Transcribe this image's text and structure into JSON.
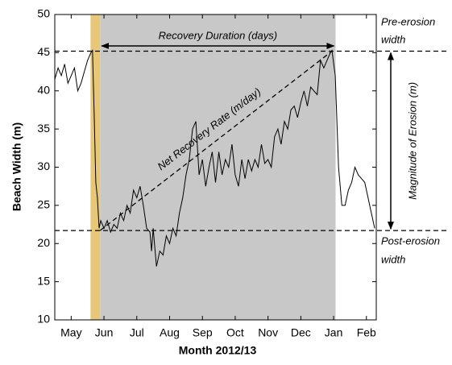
{
  "chart_data": {
    "type": "line",
    "x_label": "Month 2012/13",
    "y_label": "Beach Width (m)",
    "xlim": [
      -0.5,
      9.3
    ],
    "xticks": [
      {
        "value": 0,
        "label": "May"
      },
      {
        "value": 1,
        "label": "Jun"
      },
      {
        "value": 2,
        "label": "Jul"
      },
      {
        "value": 3,
        "label": "Aug"
      },
      {
        "value": 4,
        "label": "Sep"
      },
      {
        "value": 5,
        "label": "Oct"
      },
      {
        "value": 6,
        "label": "Nov"
      },
      {
        "value": 7,
        "label": "Dec"
      },
      {
        "value": 8,
        "label": "Jan"
      },
      {
        "value": 9,
        "label": "Feb"
      }
    ],
    "ylim": [
      10,
      50
    ],
    "yticks": [
      10,
      15,
      20,
      25,
      30,
      35,
      40,
      45,
      50
    ],
    "shaded_regions": [
      {
        "start": 0.59,
        "end": 0.88,
        "color": "#e8c878"
      },
      {
        "start": 0.88,
        "end": 8.06,
        "color": "#c8c8c8"
      }
    ],
    "reference_lines": [
      45.2,
      21.7
    ],
    "trend_line": {
      "x": [
        0.88,
        7.95
      ],
      "y": [
        21.7,
        45.2
      ]
    },
    "annotations": {
      "recovery_duration": "Recovery Duration (days)",
      "recovery_rate": "Net Recovery Rate (m/day)",
      "magnitude": "Magnitude of Erosion (m)",
      "pre_erosion": [
        "Pre-erosion",
        "width"
      ],
      "post_erosion": [
        "Post-erosion",
        "width"
      ]
    },
    "series": [
      {
        "color": "#000000",
        "x": [
          -0.5,
          -0.4,
          -0.3,
          -0.2,
          -0.1,
          0,
          0.1,
          0.2,
          0.3,
          0.4,
          0.5,
          0.6,
          0.65,
          0.7,
          0.75,
          0.8,
          0.85,
          0.9,
          1.0,
          1.1,
          1.2,
          1.3,
          1.4,
          1.5,
          1.6,
          1.7,
          1.8,
          1.9,
          2.0,
          2.1,
          2.2,
          2.3,
          2.4,
          2.45,
          2.5,
          2.6,
          2.7,
          2.8,
          2.9,
          3.0,
          3.1,
          3.2,
          3.3,
          3.4,
          3.5,
          3.6,
          3.7,
          3.8,
          3.9,
          4.0,
          4.1,
          4.2,
          4.3,
          4.4,
          4.5,
          4.6,
          4.7,
          4.8,
          4.9,
          5.0,
          5.1,
          5.2,
          5.3,
          5.4,
          5.5,
          5.6,
          5.7,
          5.8,
          5.9,
          6.0,
          6.1,
          6.2,
          6.3,
          6.4,
          6.5,
          6.6,
          6.7,
          6.8,
          6.9,
          7.0,
          7.1,
          7.2,
          7.3,
          7.4,
          7.5,
          7.6,
          7.7,
          7.8,
          7.9,
          7.95,
          8.05,
          8.15,
          8.25,
          8.35,
          8.45,
          8.55,
          8.65,
          8.75,
          8.85,
          8.95,
          9.05,
          9.15,
          9.25
        ],
        "values": [
          41.5,
          43,
          42,
          43.5,
          41,
          42,
          43,
          40,
          41,
          42.5,
          44,
          45,
          45.3,
          37,
          28,
          26,
          22,
          23,
          22,
          23,
          21.5,
          22.5,
          22,
          24,
          23,
          25,
          24,
          27,
          26,
          27.5,
          25,
          22,
          21.5,
          19,
          22,
          17,
          19,
          18.5,
          21,
          20,
          22,
          21,
          24,
          26,
          29,
          31,
          35,
          36,
          29,
          31,
          27.5,
          30,
          32,
          28,
          32,
          29,
          31,
          30,
          33,
          29,
          27.5,
          31,
          28.5,
          31,
          29.5,
          31,
          30,
          33,
          30.5,
          31,
          30,
          34,
          35,
          33,
          36,
          35,
          37.5,
          38,
          36.5,
          38.5,
          40,
          38,
          40.5,
          40,
          39.5,
          44,
          43,
          44,
          45,
          45.3,
          42,
          30,
          25,
          25,
          27,
          28,
          30,
          29,
          28.5,
          28,
          26,
          24,
          22
        ]
      }
    ]
  }
}
